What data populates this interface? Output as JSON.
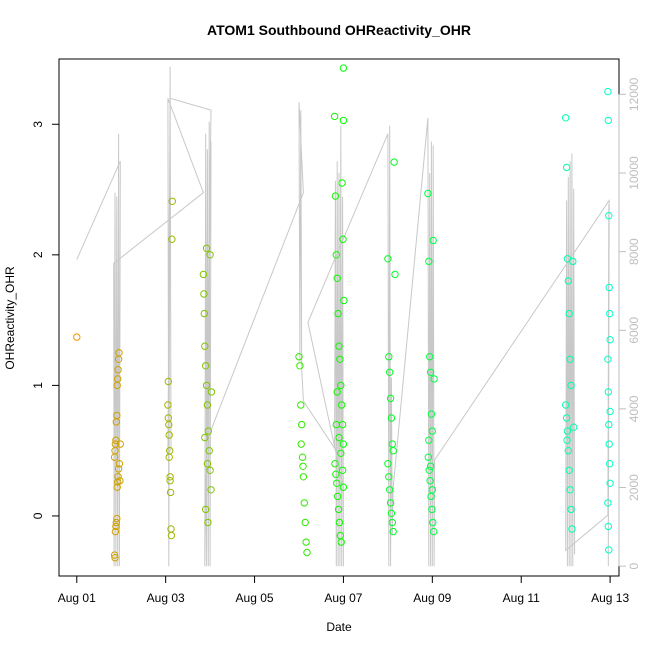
{
  "chart_data": {
    "type": "scatter",
    "title": "ATOM1 Southbound OHReactivity_OHR",
    "xlabel": "Date",
    "ylabel": "OHReactivity_OHR",
    "xlim_day": [
      0.6,
      13.2
    ],
    "ylim": [
      -0.46,
      3.5
    ],
    "ylim_right": [
      -250,
      12900
    ],
    "x_ticks": [
      {
        "day": 1,
        "label": "Aug 01"
      },
      {
        "day": 3,
        "label": "Aug 03"
      },
      {
        "day": 5,
        "label": "Aug 05"
      },
      {
        "day": 7,
        "label": "Aug 07"
      },
      {
        "day": 9,
        "label": "Aug 09"
      },
      {
        "day": 11,
        "label": "Aug 11"
      },
      {
        "day": 13,
        "label": "Aug 13"
      }
    ],
    "y_ticks": [
      0,
      1,
      2,
      3
    ],
    "y_ticks_right": [
      0,
      2000,
      4000,
      6000,
      8000,
      10000,
      12000
    ],
    "colors": {
      "axis": "#000000",
      "right_axis": "#bebebe",
      "line": "#c8c8c8",
      "point_early": "#ff8c00",
      "point_late": "#00ffc8"
    },
    "points": [
      {
        "x": 1.0,
        "y": 1.37
      },
      {
        "x": 1.85,
        "y": -0.3
      },
      {
        "x": 1.86,
        "y": -0.32
      },
      {
        "x": 1.87,
        "y": -0.12
      },
      {
        "x": 1.88,
        "y": -0.08
      },
      {
        "x": 1.89,
        "y": -0.05
      },
      {
        "x": 1.9,
        "y": -0.02
      },
      {
        "x": 1.91,
        "y": 0.22
      },
      {
        "x": 1.92,
        "y": 0.26
      },
      {
        "x": 1.93,
        "y": 0.3
      },
      {
        "x": 1.94,
        "y": 0.36
      },
      {
        "x": 1.85,
        "y": 0.45
      },
      {
        "x": 1.86,
        "y": 0.5
      },
      {
        "x": 1.87,
        "y": 0.55
      },
      {
        "x": 1.88,
        "y": 0.58
      },
      {
        "x": 1.89,
        "y": 0.72
      },
      {
        "x": 1.9,
        "y": 0.77
      },
      {
        "x": 1.91,
        "y": 1.0
      },
      {
        "x": 1.92,
        "y": 1.05
      },
      {
        "x": 1.93,
        "y": 1.12
      },
      {
        "x": 1.94,
        "y": 1.2
      },
      {
        "x": 1.95,
        "y": 1.25
      },
      {
        "x": 1.96,
        "y": 0.4
      },
      {
        "x": 1.97,
        "y": 0.27
      },
      {
        "x": 1.98,
        "y": 0.55
      },
      {
        "x": 3.05,
        "y": 0.85
      },
      {
        "x": 3.06,
        "y": 1.03
      },
      {
        "x": 3.07,
        "y": 0.7
      },
      {
        "x": 3.08,
        "y": 0.62
      },
      {
        "x": 3.09,
        "y": 0.5
      },
      {
        "x": 3.1,
        "y": 0.3
      },
      {
        "x": 3.11,
        "y": 0.18
      },
      {
        "x": 3.12,
        "y": -0.1
      },
      {
        "x": 3.13,
        "y": -0.15
      },
      {
        "x": 3.14,
        "y": 2.12
      },
      {
        "x": 3.15,
        "y": 2.41
      },
      {
        "x": 3.06,
        "y": 0.75
      },
      {
        "x": 3.08,
        "y": 0.45
      },
      {
        "x": 3.1,
        "y": 0.27
      },
      {
        "x": 3.85,
        "y": 1.85
      },
      {
        "x": 3.86,
        "y": 1.7
      },
      {
        "x": 3.87,
        "y": 1.55
      },
      {
        "x": 3.88,
        "y": 1.3
      },
      {
        "x": 3.9,
        "y": 1.15
      },
      {
        "x": 3.92,
        "y": 1.0
      },
      {
        "x": 3.94,
        "y": 0.85
      },
      {
        "x": 3.96,
        "y": 0.65
      },
      {
        "x": 3.98,
        "y": 0.5
      },
      {
        "x": 4.0,
        "y": 0.35
      },
      {
        "x": 4.02,
        "y": 0.2
      },
      {
        "x": 3.9,
        "y": 0.05
      },
      {
        "x": 3.95,
        "y": -0.05
      },
      {
        "x": 4.0,
        "y": 2.0
      },
      {
        "x": 3.92,
        "y": 2.05
      },
      {
        "x": 3.94,
        "y": 0.4
      },
      {
        "x": 3.88,
        "y": 0.6
      },
      {
        "x": 4.03,
        "y": 0.95
      },
      {
        "x": 6.0,
        "y": 1.22
      },
      {
        "x": 6.02,
        "y": 1.15
      },
      {
        "x": 6.04,
        "y": 0.85
      },
      {
        "x": 6.06,
        "y": 0.7
      },
      {
        "x": 6.08,
        "y": 0.45
      },
      {
        "x": 6.1,
        "y": 0.3
      },
      {
        "x": 6.12,
        "y": 0.1
      },
      {
        "x": 6.14,
        "y": -0.05
      },
      {
        "x": 6.16,
        "y": -0.2
      },
      {
        "x": 6.18,
        "y": -0.28
      },
      {
        "x": 6.05,
        "y": 0.55
      },
      {
        "x": 6.09,
        "y": 0.38
      },
      {
        "x": 6.8,
        "y": 3.06
      },
      {
        "x": 6.82,
        "y": 2.45
      },
      {
        "x": 6.84,
        "y": 2.0
      },
      {
        "x": 6.86,
        "y": 1.82
      },
      {
        "x": 6.88,
        "y": 1.55
      },
      {
        "x": 6.9,
        "y": 1.3
      },
      {
        "x": 6.92,
        "y": 1.2
      },
      {
        "x": 6.94,
        "y": 1.0
      },
      {
        "x": 6.96,
        "y": 0.85
      },
      {
        "x": 6.98,
        "y": 0.7
      },
      {
        "x": 7.0,
        "y": 0.55
      },
      {
        "x": 6.81,
        "y": 0.4
      },
      {
        "x": 6.83,
        "y": 0.32
      },
      {
        "x": 6.85,
        "y": 0.25
      },
      {
        "x": 6.87,
        "y": 0.15
      },
      {
        "x": 6.89,
        "y": 0.05
      },
      {
        "x": 6.91,
        "y": -0.05
      },
      {
        "x": 6.93,
        "y": -0.15
      },
      {
        "x": 6.95,
        "y": -0.2
      },
      {
        "x": 7.0,
        "y": 3.43
      },
      {
        "x": 7.0,
        "y": 3.03
      },
      {
        "x": 6.97,
        "y": 2.55
      },
      {
        "x": 6.99,
        "y": 2.12
      },
      {
        "x": 7.01,
        "y": 1.65
      },
      {
        "x": 6.86,
        "y": 0.95
      },
      {
        "x": 6.9,
        "y": 0.6
      },
      {
        "x": 6.94,
        "y": 0.48
      },
      {
        "x": 6.98,
        "y": 0.35
      },
      {
        "x": 7.0,
        "y": 0.22
      },
      {
        "x": 6.84,
        "y": 0.7
      },
      {
        "x": 8.0,
        "y": 1.97
      },
      {
        "x": 8.02,
        "y": 1.22
      },
      {
        "x": 8.04,
        "y": 1.1
      },
      {
        "x": 8.06,
        "y": 0.9
      },
      {
        "x": 8.08,
        "y": 0.75
      },
      {
        "x": 8.1,
        "y": 0.55
      },
      {
        "x": 8.12,
        "y": 0.5
      },
      {
        "x": 8.0,
        "y": 0.4
      },
      {
        "x": 8.02,
        "y": 0.3
      },
      {
        "x": 8.04,
        "y": 0.2
      },
      {
        "x": 8.06,
        "y": 0.1
      },
      {
        "x": 8.08,
        "y": 0.02
      },
      {
        "x": 8.1,
        "y": -0.05
      },
      {
        "x": 8.12,
        "y": -0.12
      },
      {
        "x": 8.14,
        "y": 2.71
      },
      {
        "x": 8.16,
        "y": 1.85
      },
      {
        "x": 8.9,
        "y": 2.47
      },
      {
        "x": 8.92,
        "y": 1.95
      },
      {
        "x": 8.94,
        "y": 1.22
      },
      {
        "x": 8.96,
        "y": 1.1
      },
      {
        "x": 8.98,
        "y": 0.78
      },
      {
        "x": 9.0,
        "y": 0.65
      },
      {
        "x": 8.91,
        "y": 0.45
      },
      {
        "x": 8.93,
        "y": 0.35
      },
      {
        "x": 8.95,
        "y": 0.27
      },
      {
        "x": 8.97,
        "y": 0.15
      },
      {
        "x": 8.99,
        "y": 0.05
      },
      {
        "x": 9.01,
        "y": -0.05
      },
      {
        "x": 9.03,
        "y": -0.12
      },
      {
        "x": 9.02,
        "y": 2.11
      },
      {
        "x": 9.04,
        "y": 1.05
      },
      {
        "x": 8.92,
        "y": 0.58
      },
      {
        "x": 8.96,
        "y": 0.38
      },
      {
        "x": 9.0,
        "y": 0.2
      },
      {
        "x": 12.0,
        "y": 3.05
      },
      {
        "x": 12.02,
        "y": 2.67
      },
      {
        "x": 12.04,
        "y": 1.97
      },
      {
        "x": 12.06,
        "y": 1.8
      },
      {
        "x": 12.08,
        "y": 1.55
      },
      {
        "x": 12.1,
        "y": 1.2
      },
      {
        "x": 12.12,
        "y": 1.0
      },
      {
        "x": 12.0,
        "y": 0.85
      },
      {
        "x": 12.02,
        "y": 0.75
      },
      {
        "x": 12.04,
        "y": 0.65
      },
      {
        "x": 12.06,
        "y": 0.5
      },
      {
        "x": 12.08,
        "y": 0.35
      },
      {
        "x": 12.1,
        "y": 0.2
      },
      {
        "x": 12.12,
        "y": 0.05
      },
      {
        "x": 12.14,
        "y": -0.1
      },
      {
        "x": 12.16,
        "y": 1.95
      },
      {
        "x": 12.18,
        "y": 0.68
      },
      {
        "x": 12.03,
        "y": 0.58
      },
      {
        "x": 12.95,
        "y": 3.25
      },
      {
        "x": 12.96,
        "y": 3.03
      },
      {
        "x": 12.97,
        "y": 2.3
      },
      {
        "x": 12.98,
        "y": 1.75
      },
      {
        "x": 12.99,
        "y": 1.55
      },
      {
        "x": 13.0,
        "y": 1.35
      },
      {
        "x": 12.95,
        "y": 1.2
      },
      {
        "x": 12.96,
        "y": 0.95
      },
      {
        "x": 12.97,
        "y": 0.7
      },
      {
        "x": 12.98,
        "y": 0.55
      },
      {
        "x": 12.99,
        "y": 0.4
      },
      {
        "x": 13.0,
        "y": 0.25
      },
      {
        "x": 12.95,
        "y": 0.1
      },
      {
        "x": 12.96,
        "y": -0.08
      },
      {
        "x": 12.97,
        "y": -0.26
      },
      {
        "x": 13.0,
        "y": 0.8
      }
    ],
    "line_right": [
      {
        "x": 1.0,
        "y": 7800
      },
      {
        "x": 1.98,
        "y": 10300
      },
      {
        "x": 1.96,
        "y": 0
      },
      {
        "x": 1.94,
        "y": 11000
      },
      {
        "x": 1.92,
        "y": 0
      },
      {
        "x": 1.9,
        "y": 9400
      },
      {
        "x": 1.88,
        "y": 0
      },
      {
        "x": 1.86,
        "y": 9500
      },
      {
        "x": 1.84,
        "y": 0
      },
      {
        "x": 1.83,
        "y": 7700
      },
      {
        "x": 3.85,
        "y": 9500
      },
      {
        "x": 3.05,
        "y": 11900
      },
      {
        "x": 3.07,
        "y": 0
      },
      {
        "x": 3.1,
        "y": 12700
      },
      {
        "x": 3.12,
        "y": 3000
      },
      {
        "x": 3.05,
        "y": 2800
      },
      {
        "x": 3.1,
        "y": 11900
      },
      {
        "x": 4.02,
        "y": 11600
      },
      {
        "x": 3.88,
        "y": 0
      },
      {
        "x": 3.9,
        "y": 11000
      },
      {
        "x": 3.92,
        "y": 0
      },
      {
        "x": 3.94,
        "y": 10600
      },
      {
        "x": 3.96,
        "y": 0
      },
      {
        "x": 3.98,
        "y": 11300
      },
      {
        "x": 4.0,
        "y": 0
      },
      {
        "x": 4.02,
        "y": 10800
      },
      {
        "x": 3.93,
        "y": 3200
      },
      {
        "x": 6.1,
        "y": 9500
      },
      {
        "x": 6.0,
        "y": 11800
      },
      {
        "x": 6.02,
        "y": 5200
      },
      {
        "x": 6.04,
        "y": 11600
      },
      {
        "x": 6.06,
        "y": 5000
      },
      {
        "x": 6.1,
        "y": 4200
      },
      {
        "x": 6.8,
        "y": 3000
      },
      {
        "x": 6.82,
        "y": 9800
      },
      {
        "x": 6.84,
        "y": 0
      },
      {
        "x": 6.86,
        "y": 10300
      },
      {
        "x": 6.88,
        "y": 0
      },
      {
        "x": 6.9,
        "y": 10000
      },
      {
        "x": 6.92,
        "y": 0
      },
      {
        "x": 6.94,
        "y": 11200
      },
      {
        "x": 6.96,
        "y": 0
      },
      {
        "x": 6.98,
        "y": 9400
      },
      {
        "x": 7.0,
        "y": 0
      },
      {
        "x": 7.0,
        "y": 2000
      },
      {
        "x": 6.2,
        "y": 6200
      },
      {
        "x": 8.0,
        "y": 11000
      },
      {
        "x": 8.02,
        "y": 0
      },
      {
        "x": 8.04,
        "y": 11200
      },
      {
        "x": 8.06,
        "y": 0
      },
      {
        "x": 8.08,
        "y": 4800
      },
      {
        "x": 8.1,
        "y": 800
      },
      {
        "x": 8.12,
        "y": 2000
      },
      {
        "x": 8.9,
        "y": 11400
      },
      {
        "x": 8.92,
        "y": 0
      },
      {
        "x": 8.94,
        "y": 10000
      },
      {
        "x": 8.96,
        "y": 0
      },
      {
        "x": 8.98,
        "y": 10800
      },
      {
        "x": 9.0,
        "y": 0
      },
      {
        "x": 9.02,
        "y": 10700
      },
      {
        "x": 9.04,
        "y": 0
      },
      {
        "x": 9.05,
        "y": 2700
      },
      {
        "x": 12.98,
        "y": 9300
      },
      {
        "x": 12.96,
        "y": 0
      },
      {
        "x": 12.97,
        "y": 9200
      },
      {
        "x": 12.95,
        "y": 1300
      },
      {
        "x": 12.0,
        "y": 400
      },
      {
        "x": 12.02,
        "y": 9300
      },
      {
        "x": 12.04,
        "y": 0
      },
      {
        "x": 12.06,
        "y": 9900
      },
      {
        "x": 12.08,
        "y": 0
      },
      {
        "x": 12.1,
        "y": 10300
      },
      {
        "x": 12.12,
        "y": 0
      },
      {
        "x": 12.14,
        "y": 10500
      },
      {
        "x": 12.16,
        "y": 0
      },
      {
        "x": 12.18,
        "y": 9600
      },
      {
        "x": 12.2,
        "y": 300
      }
    ]
  }
}
